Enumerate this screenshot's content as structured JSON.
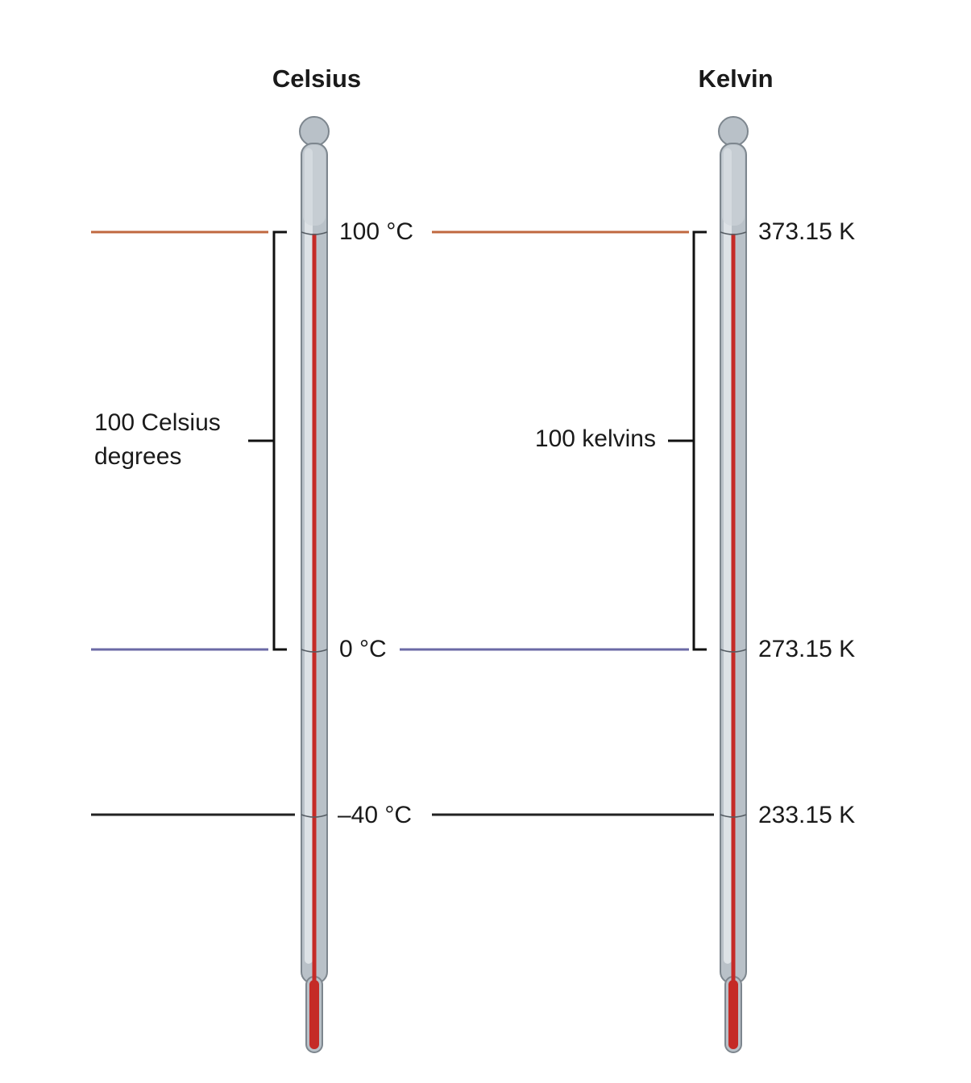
{
  "thermometers": {
    "celsius": {
      "title": "Celsius",
      "marks": [
        {
          "value": 100,
          "label": "100 °C"
        },
        {
          "value": 0,
          "label": "0 °C"
        },
        {
          "value": -40,
          "label": "–40 °C"
        }
      ]
    },
    "kelvin": {
      "title": "Kelvin",
      "marks": [
        {
          "value": 373.15,
          "label": "373.15 K"
        },
        {
          "value": 273.15,
          "label": "273.15 K"
        },
        {
          "value": 233.15,
          "label": "233.15 K"
        }
      ]
    }
  },
  "brackets": {
    "celsius": {
      "line1": "100 Celsius",
      "line2": "degrees"
    },
    "kelvin": {
      "label": "100 kelvins"
    }
  },
  "colors": {
    "boiling_line": "#c0683f",
    "freezing_line": "#6b6aa6",
    "minus40_line": "#222222",
    "mercury": "#c52b27",
    "tube_fill": "#b9c1c8",
    "tube_highlight": "#dde2e6",
    "tube_outline": "#7d868e"
  }
}
